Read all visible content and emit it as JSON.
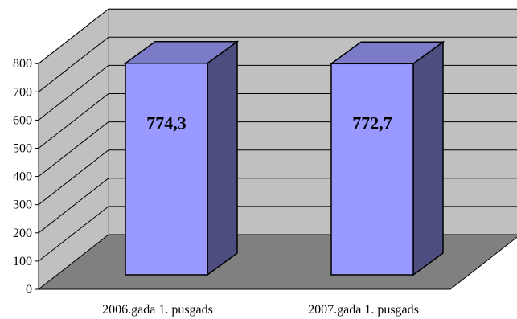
{
  "chart_data": {
    "type": "bar",
    "style": "3d-column",
    "categories": [
      "2006.gada 1. pusgads",
      "2007.gada 1. pusgads"
    ],
    "values": [
      774.3,
      772.7
    ],
    "data_labels": [
      "774,3",
      "772,7"
    ],
    "ylim": [
      0,
      800
    ],
    "yticks": [
      "0",
      "100",
      "200",
      "300",
      "400",
      "500",
      "600",
      "700",
      "800"
    ],
    "grid": true,
    "legend": "none",
    "colors": {
      "bar_front": "#9999ff",
      "bar_top": "#7b7bc8",
      "bar_side": "#4d4d7f",
      "back_wall": "#c0c0c0",
      "side_wall": "#c0c0c0",
      "floor": "#808080",
      "gridline": "#000000"
    }
  }
}
